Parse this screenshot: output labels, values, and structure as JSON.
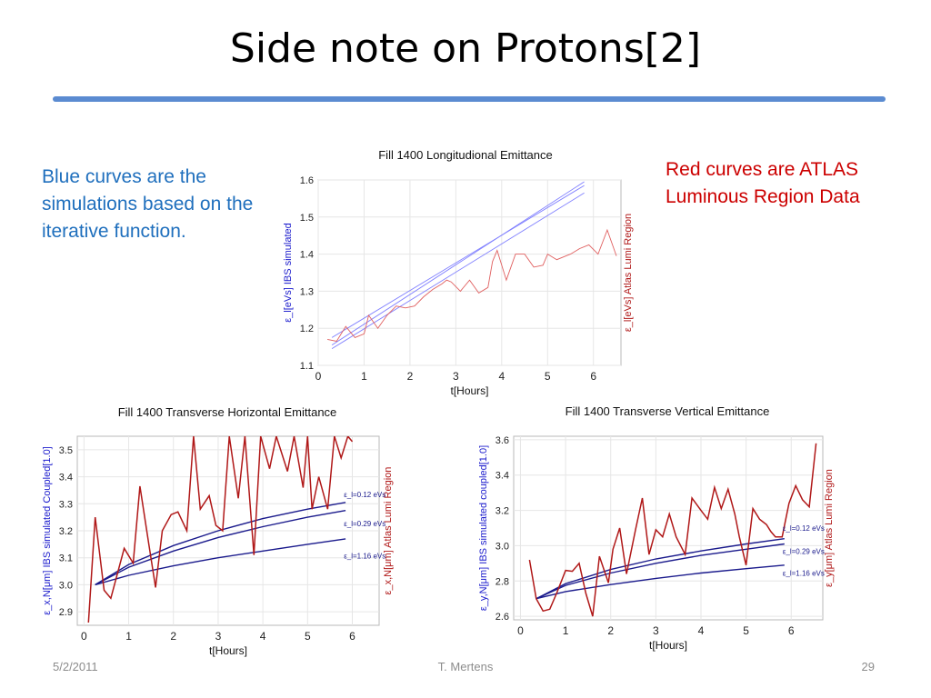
{
  "slide": {
    "title": "Side note on Protons[2]",
    "note_blue": "Blue curves are the simulations based on the iterative function.",
    "note_red": "Red curves are ATLAS Luminous Region Data",
    "footer_date": "5/2/2011",
    "footer_author": "T. Mertens",
    "footer_page": "29"
  },
  "colors": {
    "accent_rule": "#5b8bd1",
    "blue_text": "#1f6fbd",
    "red_text": "#cc0000"
  },
  "chart_data": [
    {
      "type": "line",
      "title": "Fill 1400 Longitudional Emittance",
      "xlabel": "t[Hours]",
      "ylabel": "ε_l[eVs] IBS simulated",
      "y2label": "ε_l[eVs] Atlas Lumi Region",
      "xlim": [
        0,
        6.6
      ],
      "ylim": [
        1.1,
        1.6
      ],
      "xticks": [
        "0",
        "1",
        "2",
        "3",
        "4",
        "5",
        "6"
      ],
      "yticks": [
        "1.1",
        "1.2",
        "1.3",
        "1.4",
        "1.5",
        "1.6"
      ],
      "grid": true,
      "series": [
        {
          "kind": "sim",
          "color": "#8080ff",
          "x": [
            0.3,
            5.8
          ],
          "y": [
            1.155,
            1.595
          ]
        },
        {
          "kind": "sim",
          "color": "#8080ff",
          "x": [
            0.3,
            5.8
          ],
          "y": [
            1.175,
            1.585
          ]
        },
        {
          "kind": "sim",
          "color": "#8080ff",
          "x": [
            0.3,
            5.8
          ],
          "y": [
            1.145,
            1.565
          ]
        },
        {
          "kind": "data",
          "color": "#e06060",
          "x": [
            0.2,
            0.4,
            0.6,
            0.8,
            1.0,
            1.1,
            1.3,
            1.5,
            1.7,
            1.9,
            2.1,
            2.3,
            2.5,
            2.7,
            2.8,
            2.9,
            3.1,
            3.3,
            3.5,
            3.7,
            3.8,
            3.9,
            4.1,
            4.3,
            4.5,
            4.7,
            4.9,
            5.0,
            5.2,
            5.4,
            5.5,
            5.7,
            5.9,
            6.1,
            6.3,
            6.5
          ],
          "y": [
            1.17,
            1.165,
            1.205,
            1.175,
            1.185,
            1.235,
            1.2,
            1.235,
            1.26,
            1.255,
            1.26,
            1.285,
            1.305,
            1.32,
            1.33,
            1.325,
            1.3,
            1.33,
            1.295,
            1.31,
            1.38,
            1.41,
            1.33,
            1.4,
            1.4,
            1.365,
            1.37,
            1.4,
            1.385,
            1.395,
            1.4,
            1.415,
            1.425,
            1.4,
            1.465,
            1.395
          ]
        }
      ]
    },
    {
      "type": "line",
      "title": "Fill 1400 Transverse Horizontal Emittance",
      "xlabel": "t[Hours]",
      "ylabel": "ε_x,N[μm] IBS simulated Coupled[1.0]",
      "y2label": "ε_x,N[μm] Atlas Lumi Region",
      "xlim": [
        -0.15,
        6.6
      ],
      "ylim": [
        2.85,
        3.55
      ],
      "xticks": [
        "0",
        "1",
        "2",
        "3",
        "4",
        "5",
        "6"
      ],
      "yticks": [
        "2.9",
        "3.0",
        "3.1",
        "3.2",
        "3.3",
        "3.4",
        "3.5"
      ],
      "grid": true,
      "annotations": [
        {
          "text": "ε_l=0.12 eVs",
          "x": 5.75,
          "y": 3.335
        },
        {
          "text": "ε_l=0.29 eVs",
          "x": 5.75,
          "y": 3.227
        },
        {
          "text": "ε_l=1.16 eVs",
          "x": 5.75,
          "y": 3.108
        }
      ],
      "series": [
        {
          "kind": "sim",
          "color": "#1a1a8c",
          "name": "ε_l=0.12 eVs",
          "x": [
            0.25,
            1,
            2,
            3,
            4,
            5,
            5.85
          ],
          "y": [
            3.0,
            3.075,
            3.145,
            3.2,
            3.245,
            3.28,
            3.305
          ]
        },
        {
          "kind": "sim",
          "color": "#1a1a8c",
          "name": "ε_l=0.29 eVs",
          "x": [
            0.25,
            1,
            2,
            3,
            4,
            5,
            5.85
          ],
          "y": [
            3.0,
            3.065,
            3.125,
            3.175,
            3.215,
            3.25,
            3.275
          ]
        },
        {
          "kind": "sim",
          "color": "#1a1a8c",
          "name": "ε_l=1.16 eVs",
          "x": [
            0.25,
            1,
            2,
            3,
            4,
            5,
            5.85
          ],
          "y": [
            3.0,
            3.035,
            3.07,
            3.1,
            3.125,
            3.15,
            3.17
          ]
        },
        {
          "kind": "data",
          "color": "#b01818",
          "x": [
            0.1,
            0.25,
            0.45,
            0.6,
            0.9,
            1.1,
            1.25,
            1.45,
            1.6,
            1.75,
            1.95,
            2.1,
            2.3,
            2.45,
            2.6,
            2.8,
            2.95,
            3.1,
            3.25,
            3.45,
            3.6,
            3.8,
            3.95,
            4.15,
            4.3,
            4.55,
            4.7,
            4.9,
            5.0,
            5.1,
            5.25,
            5.45,
            5.6,
            5.75,
            5.9,
            6.0
          ],
          "y": [
            2.86,
            3.25,
            2.98,
            2.95,
            3.135,
            3.08,
            3.365,
            3.15,
            2.99,
            3.2,
            3.26,
            3.27,
            3.2,
            3.55,
            3.28,
            3.33,
            3.22,
            3.2,
            3.55,
            3.32,
            3.55,
            3.11,
            3.55,
            3.43,
            3.55,
            3.42,
            3.55,
            3.36,
            3.55,
            3.28,
            3.4,
            3.28,
            3.55,
            3.47,
            3.55,
            3.53
          ]
        }
      ]
    },
    {
      "type": "line",
      "title": "Fill 1400 Transverse Vertical Emittance",
      "xlabel": "t[Hours]",
      "ylabel": "ε_y,N[μm] IBS simulated coupled[1.0]",
      "y2label": "ε_y[μm] Atlas Lumi Region",
      "xlim": [
        -0.15,
        6.7
      ],
      "ylim": [
        2.58,
        3.62
      ],
      "xticks": [
        "0",
        "1",
        "2",
        "3",
        "4",
        "5",
        "6"
      ],
      "yticks": [
        "2.6",
        "2.8",
        "3.0",
        "3.2",
        "3.4",
        "3.6"
      ],
      "grid": true,
      "annotations": [
        {
          "text": "ε_l=0.12 eVs",
          "x": 5.75,
          "y": 3.1
        },
        {
          "text": "ε_l=0.29 eVs",
          "x": 5.75,
          "y": 2.97
        },
        {
          "text": "ε_l=1.16 eVs",
          "x": 5.75,
          "y": 2.845
        }
      ],
      "series": [
        {
          "kind": "sim",
          "color": "#1a1a8c",
          "name": "ε_l=0.12 eVs",
          "x": [
            0.35,
            1,
            2,
            3,
            4,
            5,
            5.85
          ],
          "y": [
            2.7,
            2.785,
            2.865,
            2.925,
            2.97,
            3.01,
            3.04
          ]
        },
        {
          "kind": "sim",
          "color": "#1a1a8c",
          "name": "ε_l=0.29 eVs",
          "x": [
            0.35,
            1,
            2,
            3,
            4,
            5,
            5.85
          ],
          "y": [
            2.7,
            2.775,
            2.845,
            2.9,
            2.945,
            2.98,
            3.01
          ]
        },
        {
          "kind": "sim",
          "color": "#1a1a8c",
          "name": "ε_l=1.16 eVs",
          "x": [
            0.35,
            1,
            2,
            3,
            4,
            5,
            5.85
          ],
          "y": [
            2.7,
            2.74,
            2.78,
            2.815,
            2.845,
            2.87,
            2.89
          ]
        },
        {
          "kind": "data",
          "color": "#b01818",
          "x": [
            0.2,
            0.35,
            0.5,
            0.65,
            0.8,
            1.0,
            1.15,
            1.3,
            1.45,
            1.6,
            1.75,
            1.95,
            2.05,
            2.2,
            2.35,
            2.55,
            2.7,
            2.85,
            3.0,
            3.15,
            3.3,
            3.45,
            3.65,
            3.8,
            4.0,
            4.15,
            4.3,
            4.45,
            4.6,
            4.75,
            4.85,
            5.0,
            5.15,
            5.3,
            5.45,
            5.55,
            5.65,
            5.8,
            5.95,
            6.1,
            6.25,
            6.4,
            6.55
          ],
          "y": [
            2.92,
            2.7,
            2.63,
            2.64,
            2.73,
            2.86,
            2.855,
            2.9,
            2.73,
            2.6,
            2.94,
            2.79,
            2.98,
            3.1,
            2.84,
            3.09,
            3.27,
            2.95,
            3.09,
            3.05,
            3.18,
            3.05,
            2.95,
            3.27,
            3.2,
            3.15,
            3.33,
            3.21,
            3.32,
            3.18,
            3.05,
            2.89,
            3.21,
            3.15,
            3.12,
            3.08,
            3.05,
            3.05,
            3.24,
            3.34,
            3.26,
            3.22,
            3.58
          ]
        }
      ]
    }
  ]
}
